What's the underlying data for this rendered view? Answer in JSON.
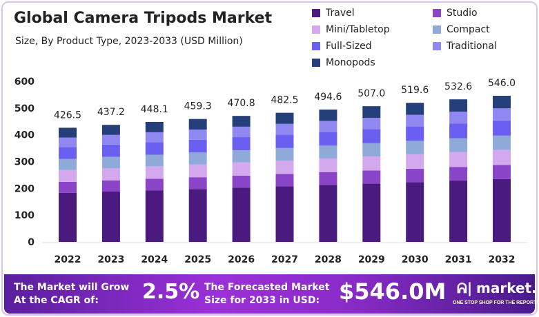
{
  "title": "Global Camera Tripods Market",
  "subtitle": "Size, By Product Type, 2023-2033 (USD Million)",
  "chart_data": {
    "type": "bar",
    "stacked": true,
    "title": "Global Camera Tripods Market",
    "subtitle": "Size, By Product Type, 2023-2033 (USD Million)",
    "categories": [
      "2022",
      "2023",
      "2024",
      "2025",
      "2026",
      "2027",
      "2028",
      "2029",
      "2030",
      "2031",
      "2032"
    ],
    "totals": [
      "426.5",
      "437.2",
      "448.1",
      "459.3",
      "470.8",
      "482.5",
      "494.6",
      "507.0",
      "519.6",
      "532.6",
      "546.0"
    ],
    "ylim": [
      0,
      600
    ],
    "yticks": [
      0,
      100,
      200,
      300,
      400,
      500,
      600
    ],
    "grid": false,
    "legend_position": "top-right",
    "series": [
      {
        "name": "Travel",
        "color": "#4b1a7e",
        "values": [
          183.4,
          188.0,
          192.7,
          197.5,
          202.4,
          207.5,
          212.7,
          218.0,
          223.4,
          229.0,
          234.8
        ]
      },
      {
        "name": "Studio",
        "color": "#8a44c8",
        "values": [
          40.9,
          42.0,
          43.0,
          44.1,
          45.2,
          46.3,
          47.5,
          48.7,
          49.9,
          51.1,
          52.4
        ]
      },
      {
        "name": "Mini/Tabletop",
        "color": "#d4a8ec",
        "values": [
          44.4,
          45.5,
          46.6,
          47.8,
          49.0,
          50.2,
          51.4,
          52.7,
          54.0,
          55.4,
          56.8
        ]
      },
      {
        "name": "Compact",
        "color": "#8faad8",
        "values": [
          41.4,
          42.4,
          43.5,
          44.6,
          45.7,
          46.8,
          48.0,
          49.2,
          50.4,
          51.7,
          53.0
        ]
      },
      {
        "name": "Full-Sized",
        "color": "#6a5ff0",
        "values": [
          44.4,
          45.5,
          46.6,
          47.8,
          49.0,
          50.2,
          51.4,
          52.7,
          54.0,
          55.4,
          56.8
        ]
      },
      {
        "name": "Traditional",
        "color": "#9088f0",
        "values": [
          35.4,
          36.3,
          37.2,
          38.1,
          39.1,
          40.0,
          41.1,
          42.1,
          43.1,
          44.2,
          45.3
        ]
      },
      {
        "name": "Monopods",
        "color": "#253f7a",
        "values": [
          36.6,
          37.5,
          38.5,
          39.4,
          40.4,
          41.5,
          42.5,
          43.6,
          44.8,
          45.8,
          46.9
        ]
      }
    ]
  },
  "banner": {
    "cagr_label": "The Market will Grow At the CAGR of:",
    "cagr_value": "2.5%",
    "forecast_label": "The Forecasted Market Size for 2033 in USD:",
    "forecast_value": "$546.0M",
    "logo_name": "market.us",
    "logo_tagline": "ONE STOP SHOP FOR THE REPORTS"
  }
}
